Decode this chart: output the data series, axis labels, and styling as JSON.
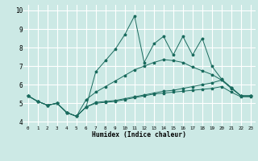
{
  "xlabel": "Humidex (Indice chaleur)",
  "xlim": [
    -0.5,
    23.5
  ],
  "ylim": [
    3.8,
    10.3
  ],
  "xticks": [
    0,
    1,
    2,
    3,
    4,
    5,
    6,
    7,
    8,
    9,
    10,
    11,
    12,
    13,
    14,
    15,
    16,
    17,
    18,
    19,
    20,
    21,
    22,
    23
  ],
  "yticks": [
    4,
    5,
    6,
    7,
    8,
    9,
    10
  ],
  "background_color": "#cce9e5",
  "grid_color": "#ffffff",
  "line_color": "#1a6b5e",
  "line1": [
    5.4,
    5.1,
    4.9,
    5.0,
    4.5,
    4.3,
    4.8,
    6.7,
    7.3,
    7.9,
    8.7,
    9.7,
    7.2,
    8.2,
    8.6,
    7.6,
    8.6,
    7.6,
    8.5,
    7.0,
    6.3,
    5.85,
    5.4,
    5.4
  ],
  "line2": [
    5.4,
    5.1,
    4.9,
    5.0,
    4.5,
    4.3,
    4.8,
    5.05,
    5.1,
    5.15,
    5.25,
    5.35,
    5.45,
    5.55,
    5.65,
    5.7,
    5.8,
    5.9,
    6.0,
    6.1,
    6.25,
    5.8,
    5.4,
    5.4
  ],
  "line3": [
    5.4,
    5.1,
    4.9,
    5.0,
    4.5,
    4.3,
    4.8,
    5.0,
    5.05,
    5.1,
    5.2,
    5.3,
    5.4,
    5.5,
    5.55,
    5.6,
    5.65,
    5.7,
    5.75,
    5.8,
    5.9,
    5.6,
    5.35,
    5.35
  ],
  "line4": [
    5.4,
    5.1,
    4.9,
    5.0,
    4.5,
    4.3,
    5.2,
    5.6,
    5.9,
    6.2,
    6.5,
    6.8,
    7.0,
    7.2,
    7.35,
    7.3,
    7.2,
    6.95,
    6.75,
    6.55,
    6.25,
    5.85,
    5.4,
    5.4
  ]
}
